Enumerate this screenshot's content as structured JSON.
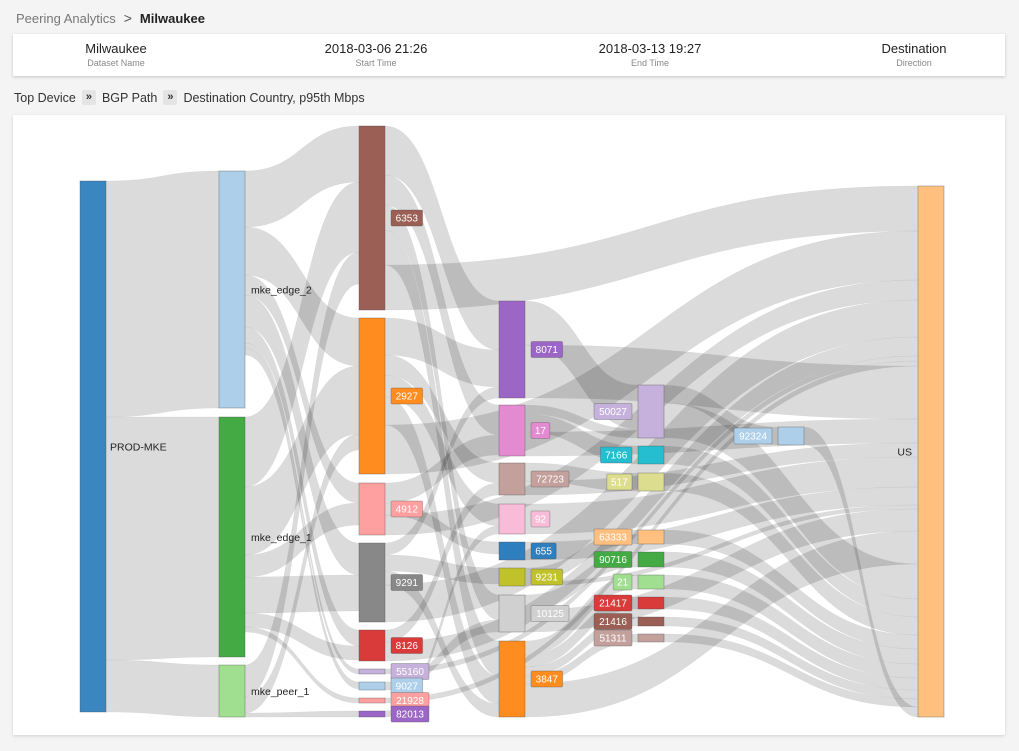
{
  "breadcrumb": {
    "root": "Peering Analytics",
    "separator": ">",
    "current": "Milwaukee"
  },
  "info": [
    {
      "value": "Milwaukee",
      "label": "Dataset Name"
    },
    {
      "value": "2018-03-06 21:26",
      "label": "Start Time"
    },
    {
      "value": "2018-03-13 19:27",
      "label": "End Time"
    },
    {
      "value": "Destination",
      "label": "Direction"
    }
  ],
  "path": {
    "step1": "Top Device",
    "step2": "BGP Path",
    "step3": "Destination Country, p95th Mbps",
    "sep": "»"
  },
  "chart_data": {
    "type": "sankey",
    "columns": [
      "Top Device",
      "BGP Path",
      "Destination Country"
    ],
    "nodes": [
      {
        "id": "PROD-MKE",
        "label": "PROD-MKE",
        "color": "#3a86c1"
      },
      {
        "id": "mke_edge_2",
        "label": "mke_edge_2",
        "color": "#aecfea"
      },
      {
        "id": "mke_edge_1",
        "label": "mke_edge_1",
        "color": "#44aa44"
      },
      {
        "id": "mke_peer_1",
        "label": "mke_peer_1",
        "color": "#9fdf8f"
      },
      {
        "id": "6353",
        "label": "6353",
        "color": "#9b5f55"
      },
      {
        "id": "2927",
        "label": "2927",
        "color": "#ff8c1f"
      },
      {
        "id": "4912",
        "label": "4912",
        "color": "#ffa0a0"
      },
      {
        "id": "9291",
        "label": "9291",
        "color": "#888888"
      },
      {
        "id": "8126",
        "label": "8126",
        "color": "#d93a3a"
      },
      {
        "id": "55160",
        "label": "55160",
        "color": "#c6b0dc"
      },
      {
        "id": "9027",
        "label": "9027",
        "color": "#aecfea"
      },
      {
        "id": "21928",
        "label": "21928",
        "color": "#ffa0a0"
      },
      {
        "id": "82013",
        "label": "82013",
        "color": "#9b66c5"
      },
      {
        "id": "8071",
        "label": "8071",
        "color": "#9b66c5"
      },
      {
        "id": "17",
        "label": "17",
        "color": "#e38ad0"
      },
      {
        "id": "72723",
        "label": "72723",
        "color": "#c3a09b"
      },
      {
        "id": "92",
        "label": "92",
        "color": "#f8bcd8"
      },
      {
        "id": "655",
        "label": "655",
        "color": "#2f7ebd"
      },
      {
        "id": "9231",
        "label": "9231",
        "color": "#bfc22a"
      },
      {
        "id": "10125",
        "label": "10125",
        "color": "#d0d0d0"
      },
      {
        "id": "3847",
        "label": "3847",
        "color": "#ff8c1f"
      },
      {
        "id": "50027",
        "label": "50027",
        "color": "#c6b0dc"
      },
      {
        "id": "7166",
        "label": "7166",
        "color": "#25bed0"
      },
      {
        "id": "517",
        "label": "517",
        "color": "#dddd8f"
      },
      {
        "id": "63333",
        "label": "63333",
        "color": "#ffbf7f"
      },
      {
        "id": "90716",
        "label": "90716",
        "color": "#44aa44"
      },
      {
        "id": "21",
        "label": "21",
        "color": "#9fdf8f"
      },
      {
        "id": "21417",
        "label": "21417",
        "color": "#d93a3a"
      },
      {
        "id": "21416",
        "label": "21416",
        "color": "#9b5f55"
      },
      {
        "id": "51311",
        "label": "51311",
        "color": "#c3a09b"
      },
      {
        "id": "92324",
        "label": "92324",
        "color": "#aecfea"
      },
      {
        "id": "US",
        "label": "US",
        "color": "#ffbf7f"
      }
    ]
  }
}
